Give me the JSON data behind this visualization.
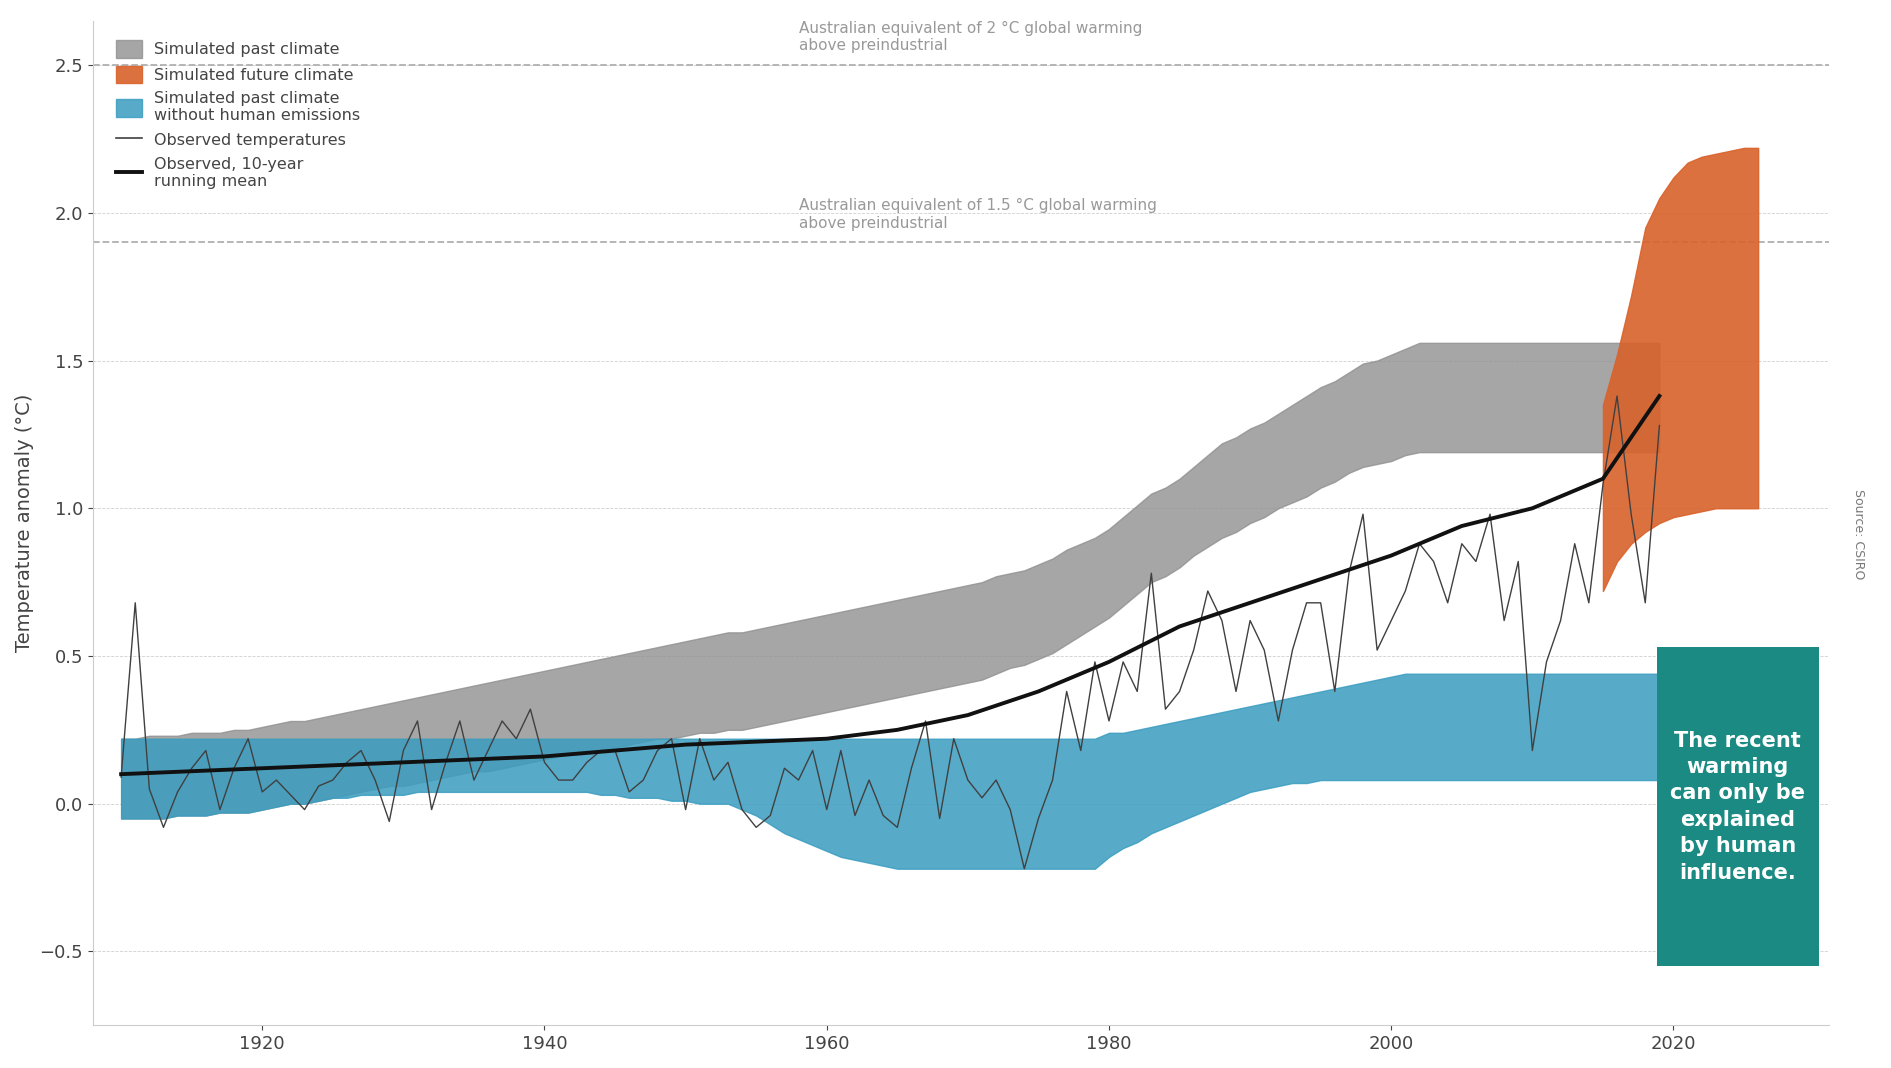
{
  "ylabel": "Temperature anomaly (°C)",
  "ylim": [
    -0.75,
    2.65
  ],
  "xlim": [
    1908,
    2031
  ],
  "yticks": [
    -0.5,
    0.0,
    0.5,
    1.0,
    1.5,
    2.0,
    2.5
  ],
  "xticks": [
    1920,
    1940,
    1960,
    1980,
    2000,
    2020
  ],
  "hline_2deg": 2.5,
  "hline_1p5deg": 1.9,
  "hline_label_2deg": "Australian equivalent of 2 °C global warming\nabove preindustrial",
  "hline_label_1p5deg": "Australian equivalent of 1.5 °C global warming\nabove preindustrial",
  "colors": {
    "gray_band": "#909090",
    "blue_band": "#3a9dc0",
    "orange_band": "#d9622b",
    "observed_line": "#404040",
    "running_mean_line": "#111111",
    "dashed_line": "#b0b0b0",
    "grid_line": "#d0d0d0",
    "background": "#ffffff",
    "teal_box": "#1a8a82",
    "source_text": "#777777",
    "axis_text": "#444444",
    "annotation_text": "#999999"
  },
  "legend_labels": [
    "Simulated past climate",
    "Simulated future climate",
    "Simulated past climate\nwithout human emissions",
    "Observed temperatures",
    "Observed, 10-year\nrunning mean"
  ],
  "box_text": "The recent\nwarming\ncan only be\nexplained\nby human\ninfluence.",
  "source_text": "Source: CSIRO",
  "observed_years": [
    1910,
    1911,
    1912,
    1913,
    1914,
    1915,
    1916,
    1917,
    1918,
    1919,
    1920,
    1921,
    1922,
    1923,
    1924,
    1925,
    1926,
    1927,
    1928,
    1929,
    1930,
    1931,
    1932,
    1933,
    1934,
    1935,
    1936,
    1937,
    1938,
    1939,
    1940,
    1941,
    1942,
    1943,
    1944,
    1945,
    1946,
    1947,
    1948,
    1949,
    1950,
    1951,
    1952,
    1953,
    1954,
    1955,
    1956,
    1957,
    1958,
    1959,
    1960,
    1961,
    1962,
    1963,
    1964,
    1965,
    1966,
    1967,
    1968,
    1969,
    1970,
    1971,
    1972,
    1973,
    1974,
    1975,
    1976,
    1977,
    1978,
    1979,
    1980,
    1981,
    1982,
    1983,
    1984,
    1985,
    1986,
    1987,
    1988,
    1989,
    1990,
    1991,
    1992,
    1993,
    1994,
    1995,
    1996,
    1997,
    1998,
    1999,
    2000,
    2001,
    2002,
    2003,
    2004,
    2005,
    2006,
    2007,
    2008,
    2009,
    2010,
    2011,
    2012,
    2013,
    2014,
    2015,
    2016,
    2017,
    2018,
    2019
  ],
  "observed_values": [
    0.09,
    0.68,
    0.05,
    -0.08,
    0.04,
    0.12,
    0.18,
    -0.02,
    0.12,
    0.22,
    0.04,
    0.08,
    0.03,
    -0.02,
    0.06,
    0.08,
    0.14,
    0.18,
    0.08,
    -0.06,
    0.18,
    0.28,
    -0.02,
    0.14,
    0.28,
    0.08,
    0.18,
    0.28,
    0.22,
    0.32,
    0.14,
    0.08,
    0.08,
    0.14,
    0.18,
    0.18,
    0.04,
    0.08,
    0.18,
    0.22,
    -0.02,
    0.22,
    0.08,
    0.14,
    -0.02,
    -0.08,
    -0.04,
    0.12,
    0.08,
    0.18,
    -0.02,
    0.18,
    -0.04,
    0.08,
    -0.04,
    -0.08,
    0.12,
    0.28,
    -0.05,
    0.22,
    0.08,
    0.02,
    0.08,
    -0.02,
    -0.22,
    -0.05,
    0.08,
    0.38,
    0.18,
    0.48,
    0.28,
    0.48,
    0.38,
    0.78,
    0.32,
    0.38,
    0.52,
    0.72,
    0.62,
    0.38,
    0.62,
    0.52,
    0.28,
    0.52,
    0.68,
    0.68,
    0.38,
    0.78,
    0.98,
    0.52,
    0.62,
    0.72,
    0.88,
    0.82,
    0.68,
    0.88,
    0.82,
    0.98,
    0.62,
    0.82,
    0.18,
    0.48,
    0.62,
    0.88,
    0.68,
    1.08,
    1.38,
    0.98,
    0.68,
    1.28
  ],
  "gray_upper": [
    0.22,
    0.22,
    0.23,
    0.23,
    0.23,
    0.24,
    0.24,
    0.24,
    0.25,
    0.25,
    0.26,
    0.27,
    0.28,
    0.28,
    0.29,
    0.3,
    0.31,
    0.32,
    0.33,
    0.34,
    0.35,
    0.36,
    0.37,
    0.38,
    0.39,
    0.4,
    0.41,
    0.42,
    0.43,
    0.44,
    0.45,
    0.46,
    0.47,
    0.48,
    0.49,
    0.5,
    0.51,
    0.52,
    0.53,
    0.54,
    0.55,
    0.56,
    0.57,
    0.58,
    0.58,
    0.59,
    0.6,
    0.61,
    0.62,
    0.63,
    0.64,
    0.65,
    0.66,
    0.67,
    0.68,
    0.69,
    0.7,
    0.71,
    0.72,
    0.73,
    0.74,
    0.75,
    0.77,
    0.78,
    0.79,
    0.81,
    0.83,
    0.86,
    0.88,
    0.9,
    0.93,
    0.97,
    1.01,
    1.05,
    1.07,
    1.1,
    1.14,
    1.18,
    1.22,
    1.24,
    1.27,
    1.29,
    1.32,
    1.35,
    1.38,
    1.41,
    1.43,
    1.46,
    1.49,
    1.5,
    1.52,
    1.54,
    1.56,
    1.56,
    1.56,
    1.56,
    1.56,
    1.56,
    1.56,
    1.56,
    1.56,
    1.56,
    1.56,
    1.56,
    1.56,
    1.56,
    1.56,
    1.56,
    1.56,
    1.56
  ],
  "gray_lower": [
    -0.05,
    -0.05,
    -0.05,
    -0.05,
    -0.04,
    -0.04,
    -0.04,
    -0.03,
    -0.03,
    -0.03,
    -0.02,
    -0.01,
    0.0,
    0.0,
    0.01,
    0.02,
    0.03,
    0.04,
    0.05,
    0.06,
    0.06,
    0.07,
    0.08,
    0.09,
    0.1,
    0.11,
    0.11,
    0.12,
    0.13,
    0.14,
    0.15,
    0.16,
    0.17,
    0.18,
    0.18,
    0.19,
    0.2,
    0.21,
    0.22,
    0.22,
    0.23,
    0.24,
    0.24,
    0.25,
    0.25,
    0.26,
    0.27,
    0.28,
    0.29,
    0.3,
    0.31,
    0.32,
    0.33,
    0.34,
    0.35,
    0.36,
    0.37,
    0.38,
    0.39,
    0.4,
    0.41,
    0.42,
    0.44,
    0.46,
    0.47,
    0.49,
    0.51,
    0.54,
    0.57,
    0.6,
    0.63,
    0.67,
    0.71,
    0.75,
    0.77,
    0.8,
    0.84,
    0.87,
    0.9,
    0.92,
    0.95,
    0.97,
    1.0,
    1.02,
    1.04,
    1.07,
    1.09,
    1.12,
    1.14,
    1.15,
    1.16,
    1.18,
    1.19,
    1.19,
    1.19,
    1.19,
    1.19,
    1.19,
    1.19,
    1.19,
    1.19,
    1.19,
    1.19,
    1.19,
    1.19,
    1.19,
    1.19,
    1.19,
    1.19,
    1.19
  ],
  "blue_upper": [
    0.22,
    0.22,
    0.22,
    0.22,
    0.22,
    0.22,
    0.22,
    0.22,
    0.22,
    0.22,
    0.22,
    0.22,
    0.22,
    0.22,
    0.22,
    0.22,
    0.22,
    0.22,
    0.22,
    0.22,
    0.22,
    0.22,
    0.22,
    0.22,
    0.22,
    0.22,
    0.22,
    0.22,
    0.22,
    0.22,
    0.22,
    0.22,
    0.22,
    0.22,
    0.22,
    0.22,
    0.22,
    0.22,
    0.22,
    0.22,
    0.22,
    0.22,
    0.22,
    0.22,
    0.22,
    0.22,
    0.22,
    0.22,
    0.22,
    0.22,
    0.22,
    0.22,
    0.22,
    0.22,
    0.22,
    0.22,
    0.22,
    0.22,
    0.22,
    0.22,
    0.22,
    0.22,
    0.22,
    0.22,
    0.22,
    0.22,
    0.22,
    0.22,
    0.22,
    0.22,
    0.24,
    0.24,
    0.25,
    0.26,
    0.27,
    0.28,
    0.29,
    0.3,
    0.31,
    0.32,
    0.33,
    0.34,
    0.35,
    0.36,
    0.37,
    0.38,
    0.39,
    0.4,
    0.41,
    0.42,
    0.43,
    0.44,
    0.44,
    0.44,
    0.44,
    0.44,
    0.44,
    0.44,
    0.44,
    0.44,
    0.44,
    0.44,
    0.44,
    0.44,
    0.44,
    0.44,
    0.44,
    0.44,
    0.44,
    0.44
  ],
  "blue_lower": [
    -0.05,
    -0.05,
    -0.05,
    -0.05,
    -0.04,
    -0.04,
    -0.04,
    -0.03,
    -0.03,
    -0.03,
    -0.02,
    -0.01,
    0.0,
    0.0,
    0.01,
    0.02,
    0.02,
    0.03,
    0.03,
    0.03,
    0.03,
    0.04,
    0.04,
    0.04,
    0.04,
    0.04,
    0.04,
    0.04,
    0.04,
    0.04,
    0.04,
    0.04,
    0.04,
    0.04,
    0.03,
    0.03,
    0.02,
    0.02,
    0.02,
    0.01,
    0.01,
    0.0,
    0.0,
    0.0,
    -0.02,
    -0.04,
    -0.07,
    -0.1,
    -0.12,
    -0.14,
    -0.16,
    -0.18,
    -0.19,
    -0.2,
    -0.21,
    -0.22,
    -0.22,
    -0.22,
    -0.22,
    -0.22,
    -0.22,
    -0.22,
    -0.22,
    -0.22,
    -0.22,
    -0.22,
    -0.22,
    -0.22,
    -0.22,
    -0.22,
    -0.18,
    -0.15,
    -0.13,
    -0.1,
    -0.08,
    -0.06,
    -0.04,
    -0.02,
    0.0,
    0.02,
    0.04,
    0.05,
    0.06,
    0.07,
    0.07,
    0.08,
    0.08,
    0.08,
    0.08,
    0.08,
    0.08,
    0.08,
    0.08,
    0.08,
    0.08,
    0.08,
    0.08,
    0.08,
    0.08,
    0.08,
    0.08,
    0.08,
    0.08,
    0.08,
    0.08,
    0.08,
    0.08,
    0.08,
    0.08,
    0.08
  ],
  "future_years": [
    2015,
    2016,
    2017,
    2018,
    2019,
    2020,
    2021,
    2022,
    2023,
    2024,
    2025,
    2026
  ],
  "future_upper": [
    1.35,
    1.52,
    1.72,
    1.95,
    2.05,
    2.12,
    2.17,
    2.19,
    2.2,
    2.21,
    2.22,
    2.22
  ],
  "future_lower": [
    0.72,
    0.82,
    0.88,
    0.92,
    0.95,
    0.97,
    0.98,
    0.99,
    1.0,
    1.0,
    1.0,
    1.0
  ],
  "running_mean_years": [
    1910,
    1915,
    1920,
    1925,
    1930,
    1935,
    1940,
    1945,
    1950,
    1955,
    1960,
    1965,
    1970,
    1975,
    1980,
    1985,
    1990,
    1995,
    2000,
    2005,
    2010,
    2015,
    2019
  ],
  "running_mean_values": [
    0.1,
    0.11,
    0.12,
    0.13,
    0.14,
    0.15,
    0.16,
    0.18,
    0.2,
    0.21,
    0.22,
    0.25,
    0.3,
    0.38,
    0.48,
    0.6,
    0.68,
    0.76,
    0.84,
    0.94,
    1.0,
    1.1,
    1.38
  ]
}
